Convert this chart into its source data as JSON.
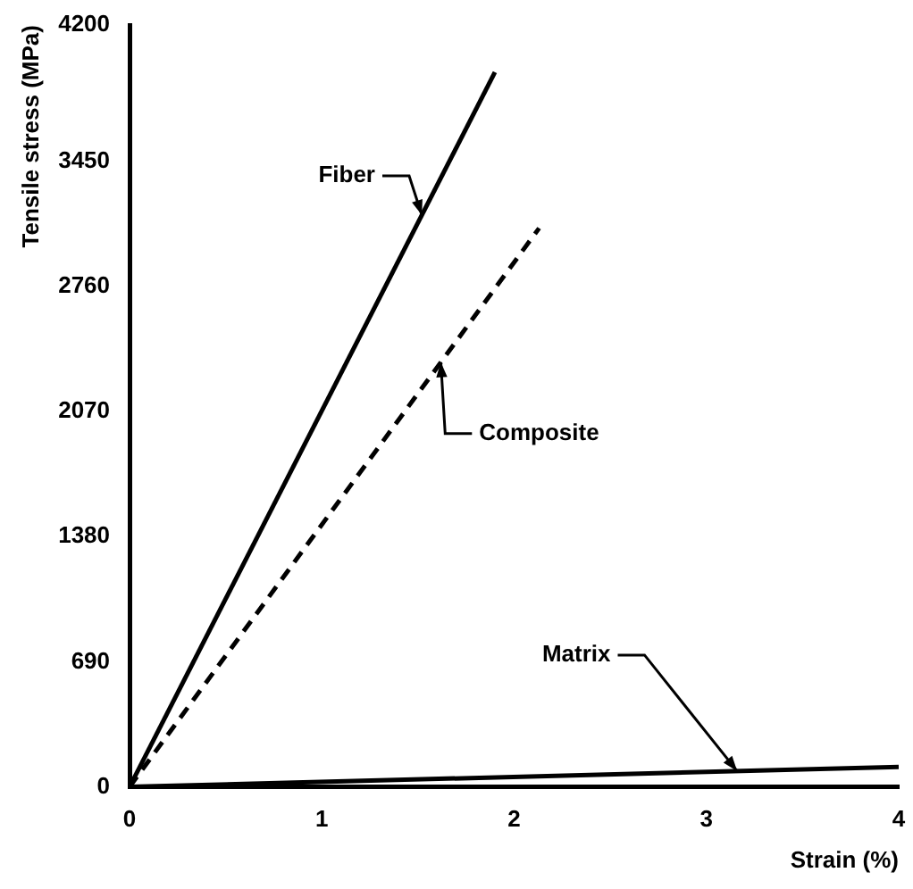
{
  "chart_data": {
    "type": "line",
    "xlabel": "Strain (%)",
    "ylabel": "Tensile stress (MPa)",
    "xlim": [
      0,
      4
    ],
    "xticks": [
      0,
      1,
      2,
      3,
      4
    ],
    "ylim": [
      0,
      4200
    ],
    "yticks": [
      0,
      690,
      1380,
      2070,
      2760,
      3450,
      4200
    ],
    "grid": false,
    "legend": false,
    "marker": "none",
    "series": [
      {
        "name": "Fiber",
        "color": "#000000",
        "x": [
          0,
          1.9
        ],
        "values": [
          0,
          3940
        ],
        "line_style": "solid"
      },
      {
        "name": "Composite",
        "color": "#000000",
        "x": [
          0,
          2.13
        ],
        "values": [
          0,
          3080
        ],
        "line_style": "dashed"
      },
      {
        "name": "Matrix",
        "color": "#000000",
        "x": [
          0,
          4
        ],
        "values": [
          0,
          110
        ],
        "line_style": "solid"
      }
    ]
  }
}
